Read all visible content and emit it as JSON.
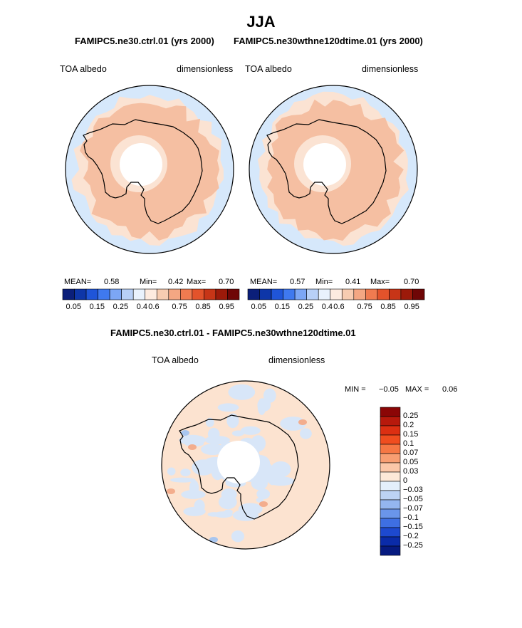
{
  "page": {
    "title": "JJA",
    "subtitle_left": "FAMIPC5.ne30.ctrl.01 (yrs 2000)",
    "subtitle_right": "FAMIPC5.ne30wthne120dtime.01 (yrs 2000)",
    "diff_title": "FAMIPC5.ne30.ctrl.01 - FAMIPC5.ne30wthne120dtime.01"
  },
  "colors": {
    "ocean_far": "#d6e8fb",
    "ocean_mid": "#fbe3d3",
    "ocean_core": "#f5bfa2",
    "pole_hole": "#ffffff",
    "coast": "#000000",
    "diff_pos_light": "#fce3d0",
    "diff_neg_light": "#d8e6f8",
    "diff_pos_strong": "#f3ad8d",
    "diff_neg_strong": "#a9c6ef"
  },
  "chart_data": [
    {
      "type": "heatmap",
      "projection": "south-polar-stereographic",
      "title": "FAMIPC5.ne30.ctrl.01 (yrs 2000)",
      "variable": "TOA albedo",
      "units": "dimensionless",
      "stats": {
        "mean_label": "MEAN=",
        "mean": "0.58",
        "min_label": "Min=",
        "min": "0.42",
        "max_label": "Max=",
        "max": "0.70"
      },
      "levels": [
        "0.05",
        "0.15",
        "0.25",
        "0.4",
        "0.6",
        "0.75",
        "0.85",
        "0.95"
      ],
      "colorbar": [
        "#0b1f7a",
        "#0e36a8",
        "#1f55d8",
        "#3f79ef",
        "#7ca6f5",
        "#b8d0f7",
        "#e9f2fd",
        "#fdebe0",
        "#f7ccb1",
        "#f4a783",
        "#f07b50",
        "#e3532b",
        "#c73517",
        "#9c1a0a",
        "#6f0606"
      ]
    },
    {
      "type": "heatmap",
      "projection": "south-polar-stereographic",
      "title": "FAMIPC5.ne30wthne120dtime.01 (yrs 2000)",
      "variable": "TOA albedo",
      "units": "dimensionless",
      "stats": {
        "mean_label": "MEAN=",
        "mean": "0.57",
        "min_label": "Min=",
        "min": "0.41",
        "max_label": "Max=",
        "max": "0.70"
      },
      "levels": [
        "0.05",
        "0.15",
        "0.25",
        "0.4",
        "0.6",
        "0.75",
        "0.85",
        "0.95"
      ],
      "colorbar": [
        "#0b1f7a",
        "#0e36a8",
        "#1f55d8",
        "#3f79ef",
        "#7ca6f5",
        "#b8d0f7",
        "#e9f2fd",
        "#fdebe0",
        "#f7ccb1",
        "#f4a783",
        "#f07b50",
        "#e3532b",
        "#c73517",
        "#9c1a0a",
        "#6f0606"
      ]
    },
    {
      "type": "heatmap",
      "projection": "south-polar-stereographic",
      "title": "FAMIPC5.ne30.ctrl.01 - FAMIPC5.ne30wthne120dtime.01",
      "variable": "TOA albedo",
      "units": "dimensionless",
      "stats": {
        "min_label": "MIN =",
        "min": "−0.05",
        "max_label": "MAX =",
        "max": "0.06"
      },
      "levels": [
        "0.25",
        "0.2",
        "0.15",
        "0.1",
        "0.07",
        "0.05",
        "0.03",
        "0",
        "−0.03",
        "−0.05",
        "−0.07",
        "−0.1",
        "−0.15",
        "−0.2",
        "−0.25"
      ],
      "colorbar": [
        "#8b0606",
        "#b7190c",
        "#dc2f12",
        "#f04d1f",
        "#f67744",
        "#f89e72",
        "#fbc7a8",
        "#fde9d8",
        "#e3effb",
        "#bcd3f4",
        "#94b6ef",
        "#6a95ea",
        "#3e6fe3",
        "#1d49cf",
        "#0a2ba8",
        "#061a80"
      ]
    }
  ]
}
